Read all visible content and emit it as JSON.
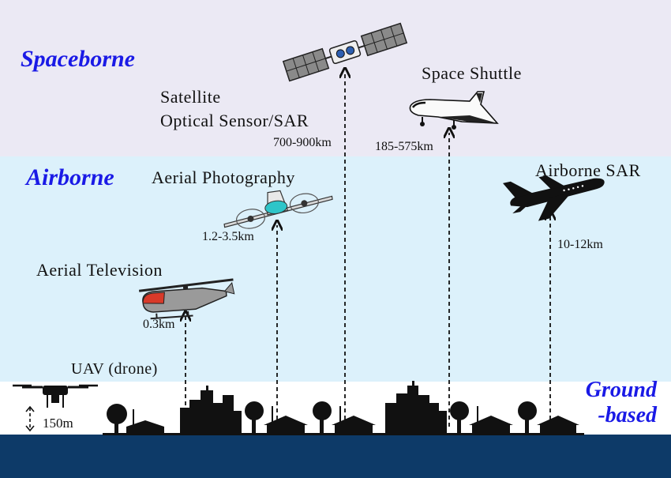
{
  "zones": {
    "spaceborne": "Spaceborne",
    "airborne": "Airborne",
    "ground_line1": "Ground",
    "ground_line2": "-based"
  },
  "platforms": {
    "satellite": {
      "line1": "Satellite",
      "line2": "Optical Sensor/SAR",
      "altitude": "700-900km",
      "icon": "satellite-icon"
    },
    "space_shuttle": {
      "label": "Space Shuttle",
      "altitude": "185-575km",
      "icon": "space-shuttle-icon"
    },
    "aerial_photography": {
      "label": "Aerial Photography",
      "altitude": "1.2-3.5km",
      "icon": "propeller-plane-icon"
    },
    "airborne_sar": {
      "label": "Airborne SAR",
      "altitude": "10-12km",
      "icon": "jet-airplane-icon"
    },
    "aerial_television": {
      "label": "Aerial Television",
      "altitude": "0.3km",
      "icon": "helicopter-icon"
    },
    "uav": {
      "label": "UAV (drone)",
      "altitude": "150m",
      "icon": "drone-icon"
    }
  },
  "colors": {
    "space_band": "#ebe9f4",
    "air_band": "#dcf1fb",
    "ground_band": "#ffffff",
    "earth_band": "#0d3a68",
    "zone_label": "#1a1ae6"
  }
}
